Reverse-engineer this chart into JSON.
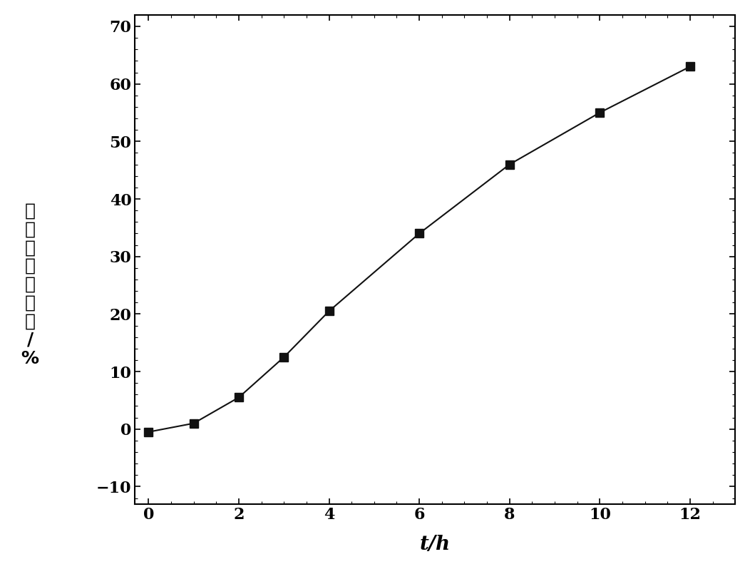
{
  "x": [
    0,
    1,
    2,
    3,
    4,
    6,
    8,
    10,
    12
  ],
  "y": [
    -0.5,
    1.0,
    5.5,
    12.5,
    20.5,
    34.0,
    46.0,
    55.0,
    63.0
  ],
  "xlabel": "t/h",
  "ylabel_chars": [
    "累",
    "积",
    "释",
    "放",
    "百",
    "分",
    "率",
    "/",
    "%"
  ],
  "xlim": [
    -0.3,
    13.0
  ],
  "ylim": [
    -13,
    72
  ],
  "xticks": [
    0,
    2,
    4,
    6,
    8,
    10,
    12
  ],
  "yticks": [
    -10,
    0,
    10,
    20,
    30,
    40,
    50,
    60,
    70
  ],
  "line_color": "#111111",
  "marker": "s",
  "marker_color": "#111111",
  "marker_size": 9,
  "line_width": 1.5,
  "xlabel_fontsize": 20,
  "ylabel_fontsize": 18,
  "tick_fontsize": 16,
  "background_color": "#ffffff"
}
